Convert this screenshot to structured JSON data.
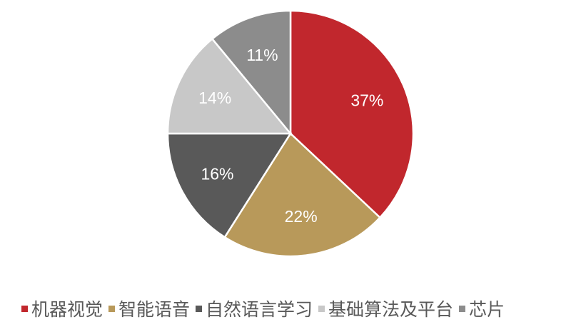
{
  "chart_data": {
    "type": "pie",
    "start_angle": "top",
    "direction": "clockwise",
    "legend_position": "bottom",
    "slices": [
      {
        "label": "机器视觉",
        "value": 37,
        "display": "37%",
        "color": "#C1272D"
      },
      {
        "label": "智能语音",
        "value": 22,
        "display": "22%",
        "color": "#B8995A"
      },
      {
        "label": "自然语言学习",
        "value": 16,
        "display": "16%",
        "color": "#595959"
      },
      {
        "label": "基础算法及平台",
        "value": 14,
        "display": "14%",
        "color": "#C8C8C8"
      },
      {
        "label": "芯片",
        "value": 11,
        "display": "11%",
        "color": "#8C8C8C"
      }
    ]
  }
}
